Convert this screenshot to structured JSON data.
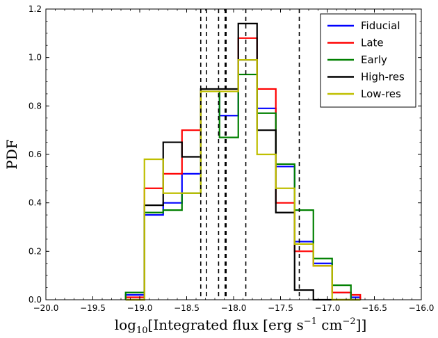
{
  "chart_data": {
    "type": "step-histogram",
    "xlabel": "log10[Integrated flux [erg s^-1 cm^-2]]",
    "ylabel": "PDF",
    "xlim": [
      -20.0,
      -16.0
    ],
    "ylim": [
      0.0,
      1.2
    ],
    "xticks": [
      "−20.0",
      "−19.5",
      "−19.0",
      "−18.5",
      "−18.0",
      "−17.5",
      "−17.0",
      "−16.5",
      "−16.0"
    ],
    "xtick_values": [
      -20.0,
      -19.5,
      -19.0,
      -18.5,
      -18.0,
      -17.5,
      -17.0,
      -16.5,
      -16.0
    ],
    "yticks": [
      "0.0",
      "0.2",
      "0.4",
      "0.6",
      "0.8",
      "1.0",
      "1.2"
    ],
    "ytick_values": [
      0.0,
      0.2,
      0.4,
      0.6,
      0.8,
      1.0,
      1.2
    ],
    "bin_edges": [
      -19.15,
      -18.95,
      -18.75,
      -18.55,
      -18.35,
      -18.15,
      -17.95,
      -17.75,
      -17.55,
      -17.35,
      -17.15,
      -16.95,
      -16.75,
      -16.65
    ],
    "series": [
      {
        "name": "Fiducial",
        "color": "#0000ff",
        "values": [
          0.02,
          0.35,
          0.4,
          0.52,
          0.86,
          0.76,
          0.99,
          0.79,
          0.55,
          0.24,
          0.15,
          0.03,
          0.01
        ]
      },
      {
        "name": "Late",
        "color": "#ff0000",
        "values": [
          0.01,
          0.46,
          0.52,
          0.7,
          0.86,
          0.86,
          1.08,
          0.87,
          0.4,
          0.2,
          0.14,
          0.03,
          0.02
        ]
      },
      {
        "name": "Early",
        "color": "#008000",
        "values": [
          0.03,
          0.36,
          0.37,
          0.44,
          0.86,
          0.67,
          0.93,
          0.77,
          0.56,
          0.37,
          0.17,
          0.06,
          0.0
        ]
      },
      {
        "name": "High-res",
        "color": "#000000",
        "values": [
          0.0,
          0.39,
          0.65,
          0.59,
          0.87,
          0.87,
          1.14,
          0.7,
          0.36,
          0.04,
          0.0,
          0.0,
          0.0
        ]
      },
      {
        "name": "Low-res",
        "color": "#bfbf00",
        "values": [
          0.0,
          0.58,
          0.44,
          0.44,
          0.86,
          0.86,
          0.99,
          0.6,
          0.46,
          0.23,
          0.14,
          0.0,
          0.0
        ]
      }
    ],
    "vlines": [
      -18.35,
      -18.29,
      -18.16,
      -18.09,
      -18.08,
      -17.87,
      -17.3
    ],
    "legend_position": "top-right",
    "grid": false
  }
}
